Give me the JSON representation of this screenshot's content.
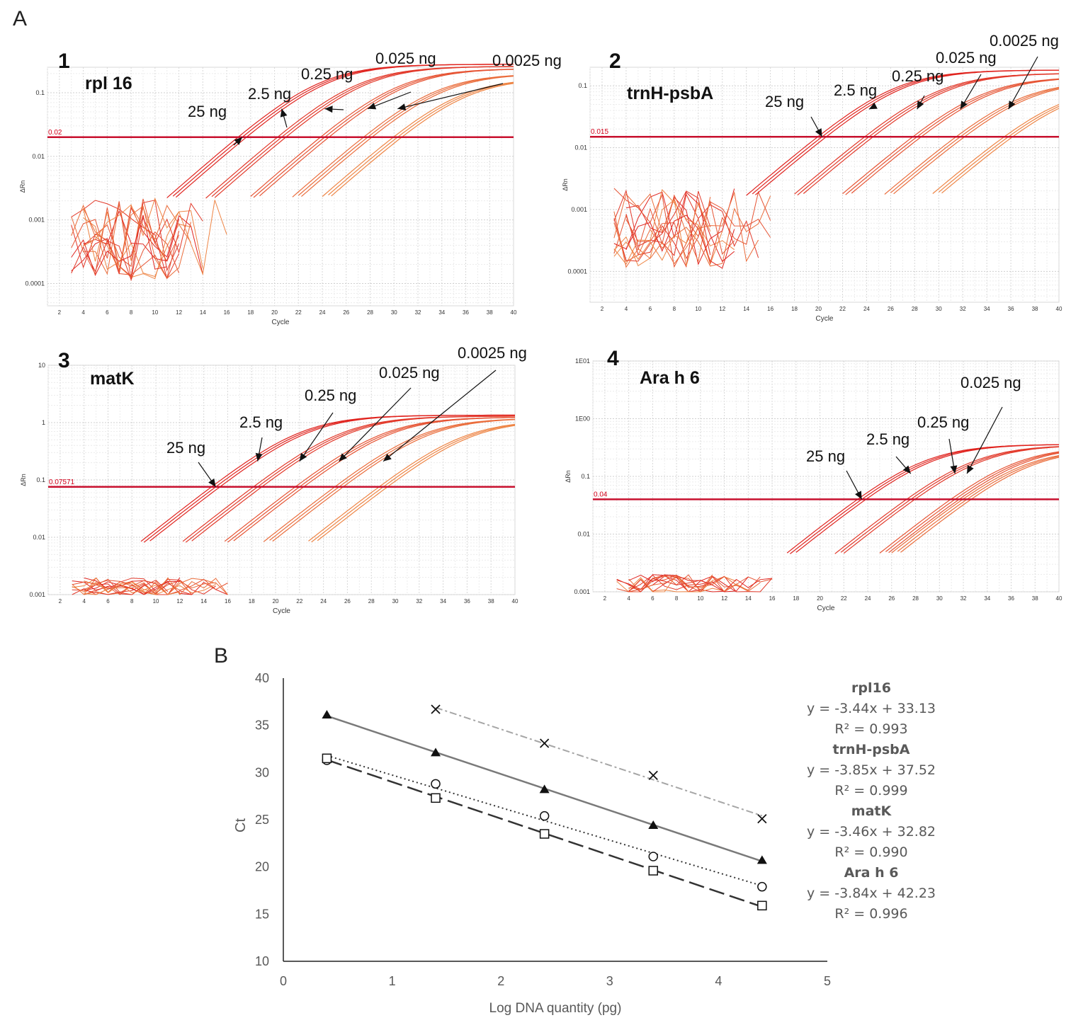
{
  "panel_a_letter": "A",
  "panel_b_letter": "B",
  "chart_data": [
    {
      "type": "line",
      "panel": "1",
      "title": "rpl 16",
      "xlabel": "Cycle",
      "ylabel": "ΔRn",
      "x_ticks": [
        "2",
        "4",
        "6",
        "8",
        "10",
        "12",
        "14",
        "16",
        "18",
        "20",
        "22",
        "24",
        "26",
        "28",
        "30",
        "32",
        "34",
        "36",
        "38",
        "40"
      ],
      "y_ticks": [
        "0.1",
        "0.01",
        "0.001",
        "0.0001"
      ],
      "y_log_range": [
        -4.35,
        -0.6
      ],
      "threshold": 0.02,
      "threshold_label": "0.02",
      "dilutions": [
        {
          "label": "25 ng",
          "ct": 17.3
        },
        {
          "label": "2.5 ng",
          "ct": 20.6
        },
        {
          "label": "0.25 ng",
          "ct": 24.2
        },
        {
          "label": "0.025 ng",
          "ct": 27.8
        },
        {
          "label": "0.0025 ng",
          "ct": 30.3
        }
      ],
      "plateau": [
        0.28,
        0.26,
        0.24,
        0.2,
        0.17
      ]
    },
    {
      "type": "line",
      "panel": "2",
      "title": "trnH-psbA",
      "xlabel": "Cycle",
      "ylabel": "ΔRn",
      "x_ticks": [
        "2",
        "4",
        "6",
        "8",
        "10",
        "12",
        "14",
        "16",
        "18",
        "20",
        "22",
        "24",
        "26",
        "28",
        "30",
        "32",
        "34",
        "36",
        "38",
        "40"
      ],
      "y_ticks": [
        "0.1",
        "0.01",
        "0.001",
        "0.0001"
      ],
      "y_log_range": [
        -4.5,
        -0.7
      ],
      "threshold": 0.015,
      "threshold_label": "0.015",
      "dilutions": [
        {
          "label": "25 ng",
          "ct": 20.3
        },
        {
          "label": "2.5 ng",
          "ct": 24.2
        },
        {
          "label": "0.25 ng",
          "ct": 28.2
        },
        {
          "label": "0.025 ng",
          "ct": 31.8
        },
        {
          "label": "0.0025 ng",
          "ct": 35.8
        }
      ],
      "plateau": [
        0.18,
        0.16,
        0.14,
        0.12,
        0.1
      ]
    },
    {
      "type": "line",
      "panel": "3",
      "title": "matK",
      "xlabel": "Cycle",
      "ylabel": "ΔRn",
      "x_ticks": [
        "2",
        "4",
        "6",
        "8",
        "10",
        "12",
        "14",
        "16",
        "18",
        "20",
        "22",
        "24",
        "26",
        "28",
        "30",
        "32",
        "34",
        "36",
        "38",
        "40"
      ],
      "y_ticks": [
        "10",
        "1",
        "0.1",
        "0.01",
        "0.001"
      ],
      "y_log_range": [
        -3,
        1
      ],
      "threshold": 0.07571,
      "threshold_label": "0.07571",
      "dilutions": [
        {
          "label": "25 ng",
          "ct": 15.0
        },
        {
          "label": "2.5 ng",
          "ct": 18.5
        },
        {
          "label": "0.25 ng",
          "ct": 22.0
        },
        {
          "label": "0.025 ng",
          "ct": 25.3
        },
        {
          "label": "0.0025 ng",
          "ct": 29.0
        }
      ],
      "plateau": [
        1.35,
        1.3,
        1.25,
        1.2,
        1.1
      ]
    },
    {
      "type": "line",
      "panel": "4",
      "title": "Ara h 6",
      "xlabel": "Cycle",
      "ylabel": "ΔRn",
      "x_ticks": [
        "2",
        "4",
        "6",
        "8",
        "10",
        "12",
        "14",
        "16",
        "18",
        "20",
        "22",
        "24",
        "26",
        "28",
        "30",
        "32",
        "34",
        "36",
        "38",
        "40"
      ],
      "y_ticks": [
        "1E01",
        "1E00",
        "0.1",
        "0.01",
        "0.001"
      ],
      "y_log_range": [
        -3,
        1
      ],
      "threshold": 0.04,
      "threshold_label": "0.04",
      "dilutions": [
        {
          "label": "25 ng",
          "ct": 23.5
        },
        {
          "label": "2.5 ng",
          "ct": 27.6
        },
        {
          "label": "0.25 ng",
          "ct": 31.3
        },
        {
          "label": "0.025 ng",
          "ct": 32.3
        }
      ],
      "plateau": [
        0.36,
        0.35,
        0.33,
        0.3
      ]
    },
    {
      "type": "scatter",
      "panel": "B",
      "xlabel": "Log DNA quantity (pg)",
      "ylabel": "Ct",
      "xlim": [
        0,
        5
      ],
      "ylim": [
        10,
        40
      ],
      "x_ticks": [
        "0",
        "1",
        "2",
        "3",
        "4",
        "5"
      ],
      "y_ticks": [
        "10",
        "15",
        "20",
        "25",
        "30",
        "35",
        "40"
      ],
      "series": [
        {
          "name": "rpl16",
          "marker": "triangle",
          "line": "solid",
          "x": [
            0.4,
            1.4,
            2.4,
            3.4,
            4.4
          ],
          "y": [
            36.1,
            32.1,
            28.2,
            24.4,
            20.7
          ],
          "equation": "y = -3.44x + 33.13",
          "r2": "R² = 0.993"
        },
        {
          "name": "trnH-psbA",
          "marker": "cross",
          "line": "dashdot",
          "x": [
            1.4,
            2.4,
            3.4,
            4.4
          ],
          "y": [
            36.7,
            33.1,
            29.7,
            25.1
          ],
          "equation": "y = -3.85x + 37.52",
          "r2": "R² = 0.999"
        },
        {
          "name": "matK",
          "marker": "circle",
          "line": "dotted",
          "x": [
            0.4,
            1.4,
            2.4,
            3.4,
            4.4
          ],
          "y": [
            31.3,
            28.8,
            25.4,
            21.1,
            17.9
          ],
          "equation": "y = -3.46x + 32.82",
          "r2": "R² = 0.990"
        },
        {
          "name": "Ara h 6",
          "marker": "square",
          "line": "dashed",
          "x": [
            0.4,
            1.4,
            2.4,
            3.4,
            4.4
          ],
          "y": [
            31.5,
            27.3,
            23.5,
            19.6,
            15.9
          ],
          "equation": "y = -3.84x + 42.23",
          "r2": "R² = 0.996"
        }
      ]
    }
  ]
}
